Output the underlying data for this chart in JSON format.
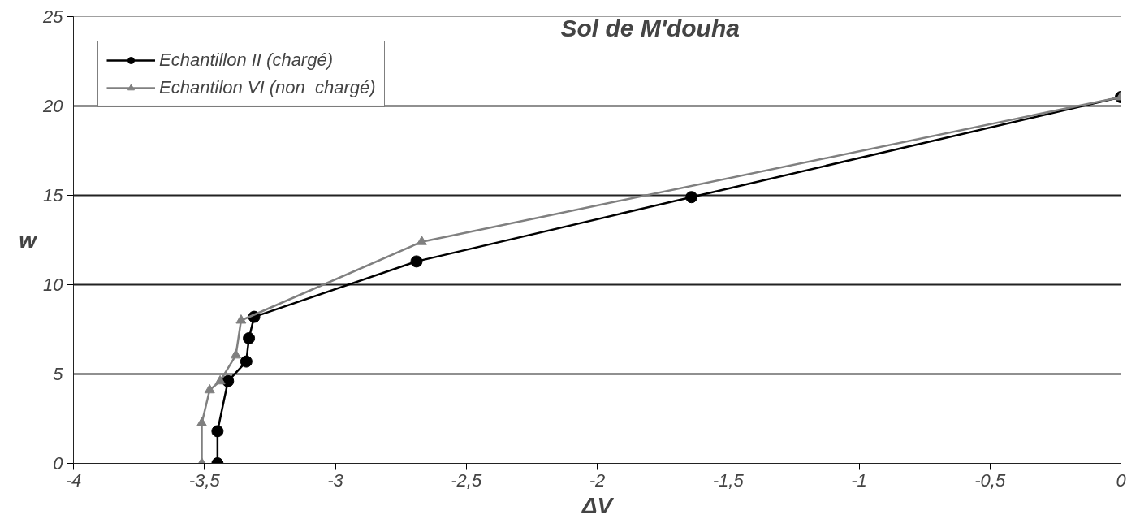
{
  "chart_data": {
    "type": "line",
    "title": "Sol de M'douha",
    "xlabel": "ΔV",
    "ylabel": "w",
    "xlim": [
      -4,
      0
    ],
    "xticks": [
      {
        "value": -4,
        "label": "-4"
      },
      {
        "value": -3.5,
        "label": "-3,5"
      },
      {
        "value": -3,
        "label": "-3"
      },
      {
        "value": -2.5,
        "label": "-2,5"
      },
      {
        "value": -2,
        "label": "-2"
      },
      {
        "value": -1.5,
        "label": "-1,5"
      },
      {
        "value": -1,
        "label": "-1"
      },
      {
        "value": -0.5,
        "label": "-0,5"
      },
      {
        "value": 0,
        "label": "0"
      }
    ],
    "ylim": [
      0,
      25
    ],
    "yticks": [
      0,
      5,
      10,
      15,
      20,
      25
    ],
    "grid": "y",
    "legend": "top left",
    "series": [
      {
        "name": "Echantillon II (chargé)",
        "color": "#000000",
        "marker": "circle",
        "x": [
          -3.45,
          -3.45,
          -3.41,
          -3.34,
          -3.33,
          -3.31,
          -2.69,
          -1.64,
          0
        ],
        "values": [
          0,
          1.8,
          4.6,
          5.7,
          7.0,
          8.2,
          11.3,
          14.9,
          20.5
        ]
      },
      {
        "name": "Echantilon VI (non  chargé)",
        "color": "#808080",
        "marker": "triangle",
        "x": [
          -3.51,
          -3.51,
          -3.48,
          -3.44,
          -3.38,
          -3.36,
          -2.67,
          0
        ],
        "values": [
          0,
          2.25,
          4.1,
          4.6,
          6.05,
          8.0,
          12.4,
          20.5
        ]
      }
    ]
  }
}
